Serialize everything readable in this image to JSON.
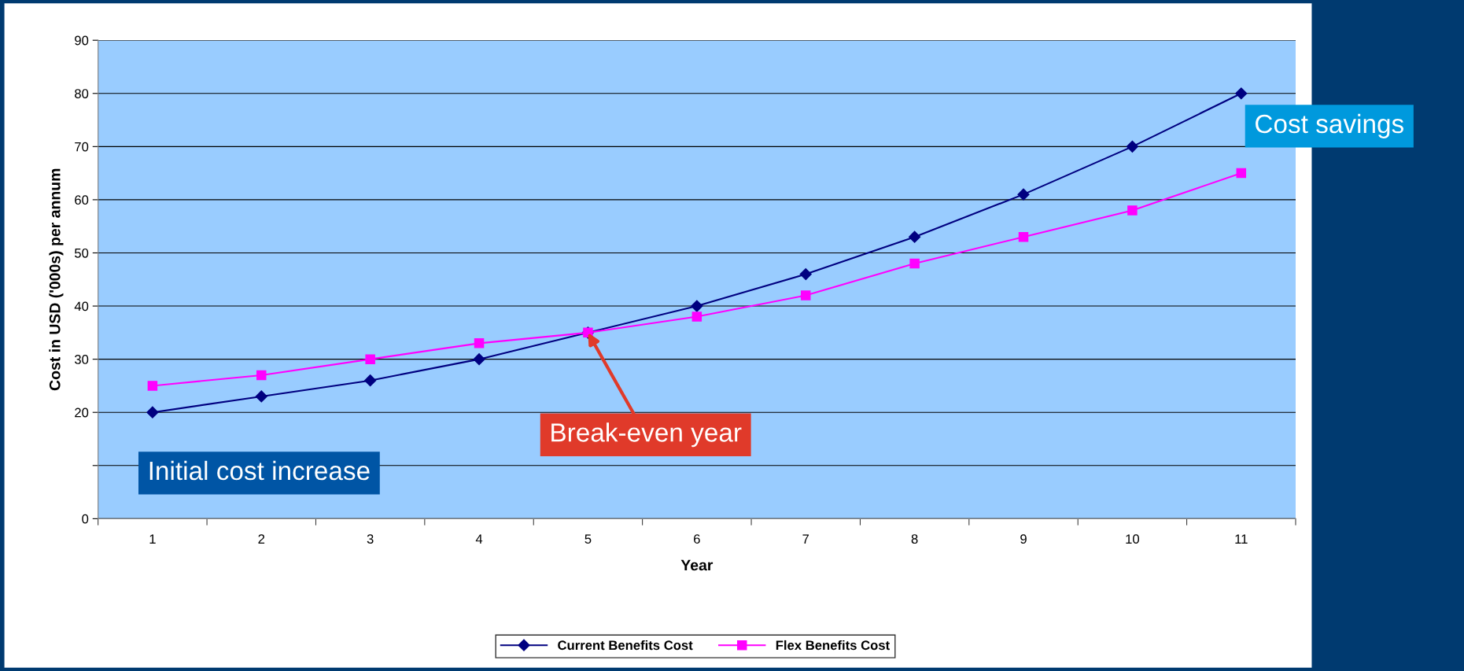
{
  "chart_data": {
    "type": "line",
    "xlabel": "Year",
    "ylabel": "Cost in USD ('000s) per annum",
    "categories": [
      "1",
      "2",
      "3",
      "4",
      "5",
      "6",
      "7",
      "8",
      "9",
      "10",
      "11"
    ],
    "series": [
      {
        "name": "Current Benefits Cost",
        "color": "#000080",
        "marker": "diamond",
        "values": [
          20,
          23,
          26,
          30,
          35,
          40,
          46,
          53,
          61,
          70,
          80
        ]
      },
      {
        "name": "Flex Benefits Cost",
        "color": "#ff00ff",
        "marker": "square",
        "values": [
          25,
          27,
          30,
          33,
          35,
          38,
          42,
          48,
          53,
          58,
          65
        ]
      }
    ],
    "ylim": [
      0,
      90
    ],
    "yticks": [
      0,
      {
        "value": 10,
        "label": null
      },
      20,
      30,
      40,
      50,
      60,
      70,
      80,
      90
    ],
    "grid": "y",
    "legend": "bottom",
    "line_style": "solid",
    "annotations": [
      "Initial cost increase",
      {
        "text": "Break-even year",
        "x": "5",
        "y": 35
      },
      "Cost savings"
    ]
  }
}
